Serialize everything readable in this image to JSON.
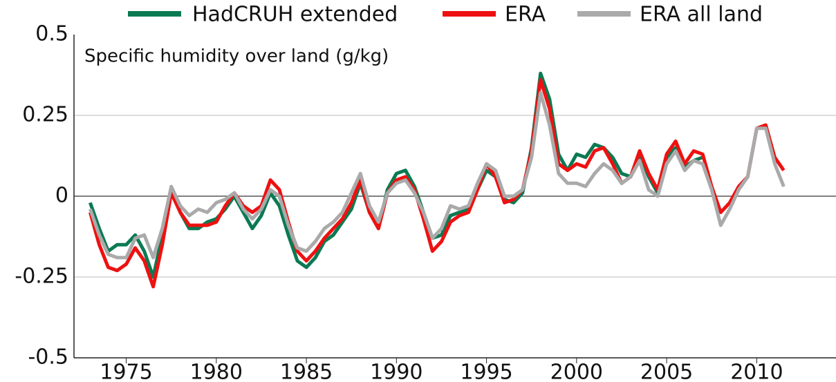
{
  "chart_data": {
    "type": "line",
    "annotation": "Specific humidity over land (g/kg)",
    "x": [
      1973,
      1973.5,
      1974,
      1974.5,
      1975,
      1975.5,
      1976,
      1976.5,
      1977,
      1977.5,
      1978,
      1978.5,
      1979,
      1979.5,
      1980,
      1980.5,
      1981,
      1981.5,
      1982,
      1982.5,
      1983,
      1983.5,
      1984,
      1984.5,
      1985,
      1985.5,
      1986,
      1986.5,
      1987,
      1987.5,
      1988,
      1988.5,
      1989,
      1989.5,
      1990,
      1990.5,
      1991,
      1991.5,
      1992,
      1992.5,
      1993,
      1993.5,
      1994,
      1994.5,
      1995,
      1995.5,
      1996,
      1996.5,
      1997,
      1997.5,
      1998,
      1998.5,
      1999,
      1999.5,
      2000,
      2000.5,
      2001,
      2001.5,
      2002,
      2002.5,
      2003,
      2003.5,
      2004,
      2004.5,
      2005,
      2005.5,
      2006,
      2006.5,
      2007,
      2007.5,
      2008,
      2008.5,
      2009,
      2009.5,
      2010,
      2010.5,
      2011,
      2011.5
    ],
    "series": [
      {
        "name": "HadCRUH extended",
        "color": "#0b7a53",
        "values": [
          -0.02,
          -0.1,
          -0.17,
          -0.15,
          -0.15,
          -0.12,
          -0.17,
          -0.25,
          -0.12,
          0.02,
          -0.05,
          -0.1,
          -0.1,
          -0.08,
          -0.07,
          -0.04,
          0.0,
          -0.05,
          -0.1,
          -0.06,
          0.01,
          -0.03,
          -0.12,
          -0.2,
          -0.22,
          -0.19,
          -0.14,
          -0.12,
          -0.08,
          -0.04,
          0.04,
          -0.05,
          -0.1,
          0.02,
          0.07,
          0.08,
          0.03,
          -0.05,
          -0.13,
          -0.12,
          -0.06,
          -0.05,
          -0.04,
          0.02,
          0.08,
          0.06,
          -0.01,
          -0.02,
          0.01,
          0.15,
          0.38,
          0.3,
          0.13,
          0.08,
          0.13,
          0.12,
          0.16,
          0.15,
          0.12,
          0.07,
          0.06,
          0.13,
          0.06,
          0.01,
          0.12,
          0.15,
          0.09,
          0.11,
          0.12,
          null,
          null,
          null,
          null,
          null,
          null,
          null,
          null,
          null
        ]
      },
      {
        "name": "ERA",
        "color": "#ee1111",
        "values": [
          -0.05,
          -0.15,
          -0.22,
          -0.23,
          -0.21,
          -0.16,
          -0.2,
          -0.28,
          -0.15,
          0.01,
          -0.05,
          -0.09,
          -0.09,
          -0.09,
          -0.08,
          -0.03,
          0.01,
          -0.03,
          -0.05,
          -0.03,
          0.05,
          0.02,
          -0.08,
          -0.17,
          -0.2,
          -0.17,
          -0.13,
          -0.1,
          -0.07,
          -0.02,
          0.05,
          -0.05,
          -0.1,
          0.01,
          0.05,
          0.06,
          0.02,
          -0.07,
          -0.17,
          -0.14,
          -0.08,
          -0.06,
          -0.05,
          0.02,
          0.1,
          0.06,
          -0.02,
          -0.01,
          0.02,
          0.14,
          0.36,
          0.27,
          0.1,
          0.08,
          0.1,
          0.09,
          0.14,
          0.15,
          0.1,
          0.04,
          0.06,
          0.14,
          0.07,
          0.02,
          0.13,
          0.17,
          0.1,
          0.14,
          0.13,
          0.03,
          -0.05,
          -0.02,
          0.03,
          0.06,
          0.21,
          0.22,
          0.12,
          0.08
        ]
      },
      {
        "name": "ERA all land",
        "color": "#aaaaaa",
        "values": [
          -0.04,
          -0.12,
          -0.18,
          -0.19,
          -0.19,
          -0.13,
          -0.12,
          -0.19,
          -0.1,
          0.03,
          -0.03,
          -0.06,
          -0.04,
          -0.05,
          -0.02,
          -0.01,
          0.01,
          -0.04,
          -0.07,
          -0.04,
          0.02,
          0.0,
          -0.09,
          -0.16,
          -0.17,
          -0.14,
          -0.1,
          -0.08,
          -0.05,
          0.01,
          0.07,
          -0.03,
          -0.08,
          0.01,
          0.04,
          0.05,
          0.01,
          -0.05,
          -0.13,
          -0.1,
          -0.03,
          -0.04,
          -0.03,
          0.04,
          0.1,
          0.08,
          0.0,
          0.0,
          0.02,
          0.12,
          0.32,
          0.22,
          0.07,
          0.04,
          0.04,
          0.03,
          0.07,
          0.1,
          0.08,
          0.04,
          0.06,
          0.11,
          0.02,
          0.0,
          0.1,
          0.14,
          0.08,
          0.11,
          0.1,
          0.02,
          -0.09,
          -0.04,
          0.02,
          0.06,
          0.21,
          0.21,
          0.1,
          0.03
        ]
      }
    ],
    "xlim": [
      1972.1,
      2014.4
    ],
    "xticks": [
      1975,
      1980,
      1985,
      1990,
      1995,
      2000,
      2005,
      2010
    ],
    "ylim": [
      -0.5,
      0.5
    ],
    "yticks": [
      0.5,
      0.25,
      0,
      -0.25,
      -0.5
    ],
    "grid": true,
    "legend": "top"
  }
}
